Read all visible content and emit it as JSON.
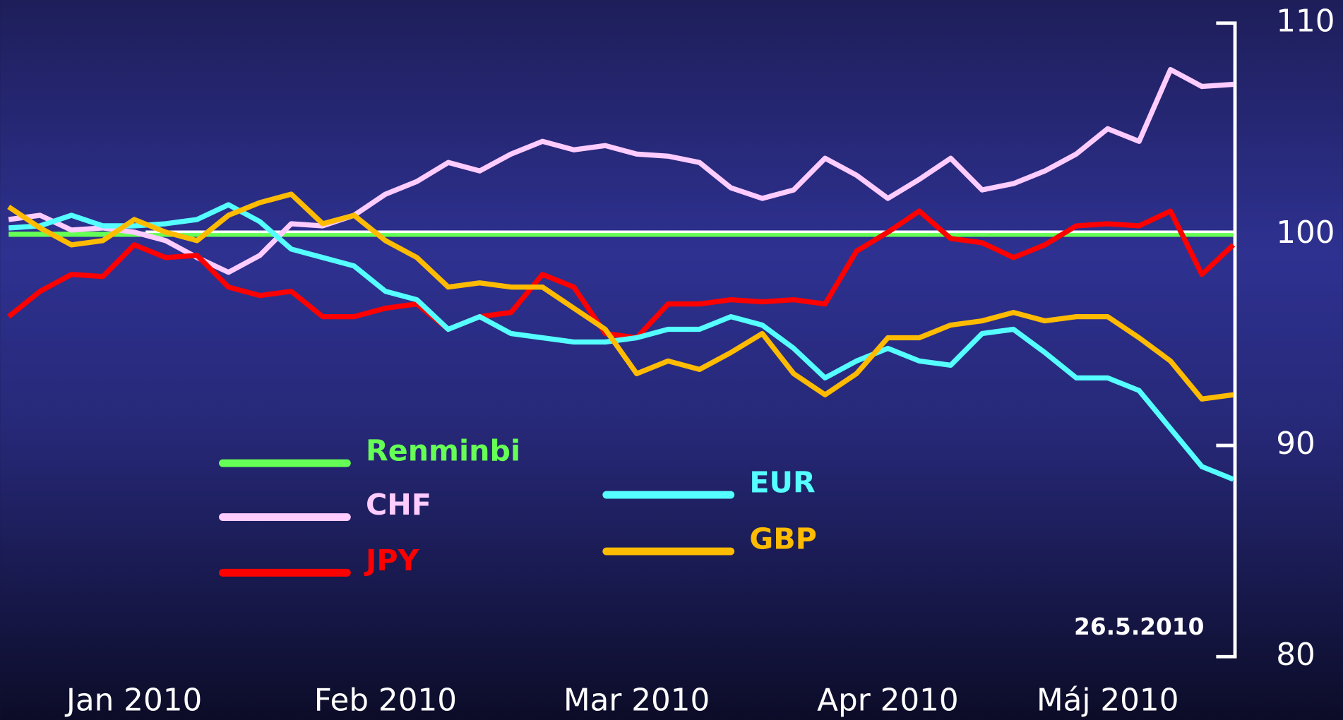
{
  "chart_data": {
    "type": "line",
    "categories": [
      null,
      null,
      null,
      null,
      "Jan 2010",
      null,
      null,
      null,
      null,
      null,
      null,
      null,
      "Feb 2010",
      null,
      null,
      null,
      null,
      null,
      null,
      null,
      "Mar 2010",
      null,
      null,
      null,
      null,
      null,
      null,
      null,
      "Apr 2010",
      null,
      null,
      null,
      null,
      null,
      null,
      "Máj 2010",
      null,
      null,
      null,
      null
    ],
    "series": [
      {
        "name": "Renminbi",
        "color": "#66ff55",
        "values": [
          100,
          100,
          100,
          100,
          100,
          100,
          100,
          100,
          100,
          100,
          100,
          100,
          100,
          100,
          100,
          100,
          100,
          100,
          100,
          100,
          100,
          100,
          100,
          100,
          100,
          100,
          100,
          100,
          100,
          100,
          100,
          100,
          100,
          100,
          100,
          100,
          100,
          100,
          100,
          100
        ]
      },
      {
        "name": "CHF",
        "color": "#ffccff",
        "values": [
          100.7,
          100.9,
          100.2,
          100.3,
          100.1,
          99.7,
          98.9,
          98.2,
          99,
          100.5,
          100.4,
          100.9,
          101.9,
          102.5,
          103.4,
          103,
          103.8,
          104.4,
          104,
          104.2,
          103.8,
          103.7,
          103.4,
          102.2,
          101.7,
          102.1,
          103.6,
          102.8,
          101.7,
          102.6,
          103.6,
          102.1,
          102.4,
          103,
          103.8,
          105,
          104.4,
          107.8,
          107,
          107.1
        ]
      },
      {
        "name": "JPY",
        "color": "#ff0000",
        "values": [
          96.1,
          97.3,
          98.1,
          98,
          99.5,
          98.9,
          99,
          97.5,
          97.1,
          97.3,
          96.1,
          96.1,
          96.5,
          96.7,
          95.5,
          96.1,
          96.3,
          98.1,
          97.5,
          95.3,
          95.1,
          96.7,
          96.7,
          96.9,
          96.8,
          96.9,
          96.7,
          99.2,
          100.1,
          101.1,
          99.8,
          99.6,
          98.9,
          99.5,
          100.4,
          100.5,
          100.4,
          101.1,
          98.1,
          99.5
        ]
      },
      {
        "name": "EUR",
        "color": "#55ffff",
        "values": [
          100.3,
          100.4,
          100.9,
          100.4,
          100.4,
          100.5,
          100.7,
          101.4,
          100.6,
          99.3,
          98.9,
          98.5,
          97.3,
          96.9,
          95.5,
          96.1,
          95.3,
          95.1,
          94.9,
          94.9,
          95.1,
          95.5,
          95.5,
          96.1,
          95.7,
          94.6,
          93.2,
          94,
          94.6,
          94,
          93.8,
          95.3,
          95.5,
          94.4,
          93.2,
          93.2,
          92.6,
          90.8,
          89,
          88.4
        ]
      },
      {
        "name": "GBP",
        "color": "#ffbb00",
        "values": [
          101.3,
          100.3,
          99.5,
          99.7,
          100.7,
          100.1,
          99.7,
          100.9,
          101.5,
          101.9,
          100.5,
          100.9,
          99.7,
          98.9,
          97.5,
          97.7,
          97.5,
          97.5,
          96.5,
          95.5,
          93.4,
          94,
          93.6,
          94.4,
          95.3,
          93.4,
          92.4,
          93.4,
          95.1,
          95.1,
          95.7,
          95.9,
          96.3,
          95.9,
          96.1,
          96.1,
          95.1,
          94,
          92.2,
          92.4
        ]
      }
    ],
    "annotation": "26.5.2010",
    "ylim": [
      80,
      110
    ],
    "yticks": [
      80,
      90,
      100,
      110
    ],
    "y_axis_side": "right"
  }
}
